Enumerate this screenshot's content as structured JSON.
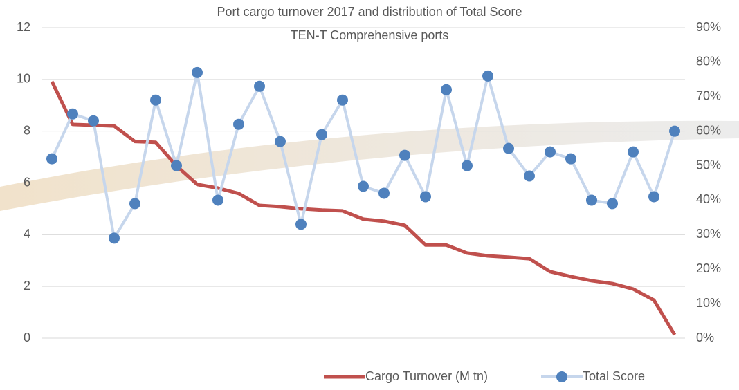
{
  "chart_data": {
    "type": "line",
    "title": "Port cargo turnover 2017 and distribution of Total Score",
    "subtitle": "TEN-T Comprehensive ports",
    "categories": [
      null,
      null,
      null,
      null,
      null,
      null,
      null,
      null,
      null,
      null,
      null,
      null,
      null,
      null,
      null,
      null,
      null,
      null,
      null,
      null,
      null,
      null,
      null,
      null,
      null,
      null,
      null,
      null,
      null,
      null,
      null
    ],
    "series": [
      {
        "name": "Cargo Turnover (M tn)",
        "color": "#c0504d",
        "axis": "y",
        "values": [
          9.92,
          8.26,
          8.23,
          8.2,
          7.6,
          7.57,
          6.66,
          5.94,
          5.8,
          5.59,
          5.13,
          5.08,
          5.0,
          4.95,
          4.92,
          4.6,
          4.52,
          4.36,
          3.6,
          3.6,
          3.29,
          3.18,
          3.13,
          3.07,
          2.57,
          2.38,
          2.22,
          2.11,
          1.9,
          1.47,
          0.13
        ]
      },
      {
        "name": "Total Score",
        "color": "#4f81bd",
        "axis": "y2",
        "values": [
          52,
          65,
          63,
          29,
          39,
          69,
          50,
          77,
          40,
          62,
          73,
          57,
          33,
          59,
          69,
          44,
          42,
          53,
          41,
          72,
          50,
          76,
          55,
          47,
          54,
          52,
          40,
          39,
          54,
          41,
          60
        ]
      }
    ],
    "ylim": [
      0,
      12
    ],
    "yticks": [
      0,
      2,
      4,
      6,
      8,
      10,
      12
    ],
    "y2lim": [
      0,
      90
    ],
    "y2ticks": [
      {
        "value": 0,
        "label": "0%"
      },
      {
        "value": 10,
        "label": "10%"
      },
      {
        "value": 20,
        "label": "20%"
      },
      {
        "value": 30,
        "label": "30%"
      },
      {
        "value": 40,
        "label": "40%"
      },
      {
        "value": 50,
        "label": "50%"
      },
      {
        "value": 60,
        "label": "60%"
      },
      {
        "value": 70,
        "label": "70%"
      },
      {
        "value": 80,
        "label": "80%"
      },
      {
        "value": 90,
        "label": "90%"
      }
    ],
    "grid": true,
    "legend": "bottom-right"
  }
}
